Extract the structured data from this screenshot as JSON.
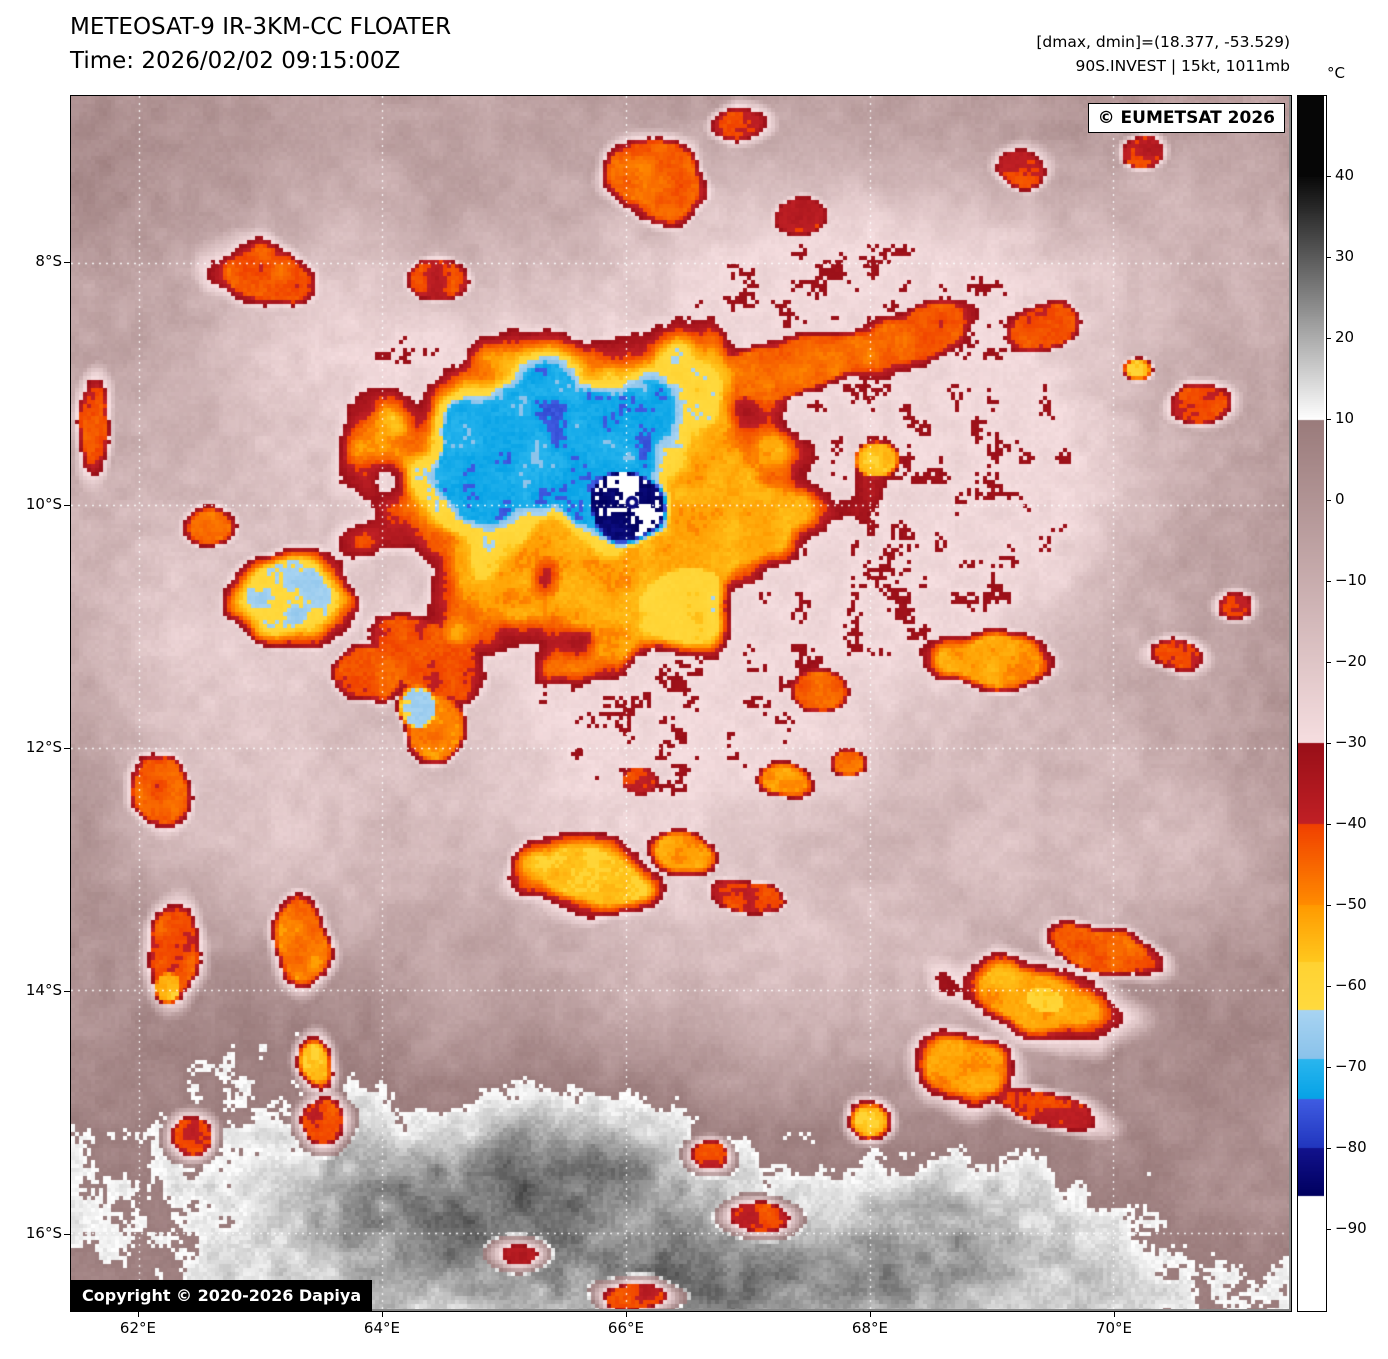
{
  "header": {
    "title": "METEOSAT-9 IR-3KM-CC FLOATER",
    "time": "Time: 2026/02/02 09:15:00Z",
    "dmax_dmin": "[dmax, dmin]=(18.377, -53.529)",
    "invest": "90S.INVEST | 15kt, 1011mb"
  },
  "map": {
    "eumetsat_credit": "© EUMETSAT 2026",
    "copyright": "Copyright © 2020-2026 Dapiya",
    "lat_ticks": [
      "8°S",
      "10°S",
      "12°S",
      "14°S",
      "16°S"
    ],
    "lon_ticks": [
      "62°E",
      "64°E",
      "66°E",
      "68°E",
      "70°E"
    ],
    "marker": {
      "ring_color": "#0a0a82",
      "dot_color": "#ffffff"
    }
  },
  "colorbar": {
    "unit": "°C",
    "top_value": 50,
    "bottom_value": -100,
    "ticks": [
      {
        "label": "40",
        "value": 40
      },
      {
        "label": "30",
        "value": 30
      },
      {
        "label": "20",
        "value": 20
      },
      {
        "label": "10",
        "value": 10
      },
      {
        "label": "0",
        "value": 0
      },
      {
        "label": "−10",
        "value": -10
      },
      {
        "label": "−20",
        "value": -20
      },
      {
        "label": "−30",
        "value": -30
      },
      {
        "label": "−40",
        "value": -40
      },
      {
        "label": "−50",
        "value": -50
      },
      {
        "label": "−60",
        "value": -60
      },
      {
        "label": "−70",
        "value": -70
      },
      {
        "label": "−80",
        "value": -80
      },
      {
        "label": "−90",
        "value": -90
      }
    ],
    "palette": [
      [
        50,
        40,
        "#060606",
        "#060606"
      ],
      [
        40,
        10,
        "#0a0a0a",
        "#ffffff"
      ],
      [
        10,
        -30,
        "#9a7b7b",
        "#f6dee0"
      ],
      [
        -30,
        -40,
        "#990f18",
        "#c12025"
      ],
      [
        -40,
        -50,
        "#f04000",
        "#ff8c00"
      ],
      [
        -50,
        -57,
        "#ff9a00",
        "#ffc81e"
      ],
      [
        -57,
        -63,
        "#ffd232",
        "#ffda3e"
      ],
      [
        -63,
        -69,
        "#a8d4f2",
        "#8ac2ea"
      ],
      [
        -69,
        -74,
        "#2ab6ee",
        "#06a2e6"
      ],
      [
        -74,
        -80,
        "#3f5ce2",
        "#2136be"
      ],
      [
        -80,
        -86,
        "#12128e",
        "#00005e"
      ],
      [
        -86,
        -100,
        "#ffffff",
        "#ffffff"
      ]
    ]
  }
}
